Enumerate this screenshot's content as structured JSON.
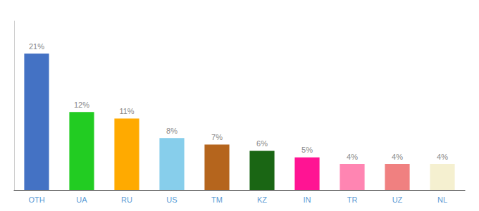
{
  "chart_data": {
    "type": "bar",
    "categories": [
      "OTH",
      "UA",
      "RU",
      "US",
      "TM",
      "KZ",
      "IN",
      "TR",
      "UZ",
      "NL"
    ],
    "values": [
      21,
      12,
      11,
      8,
      7,
      6,
      5,
      4,
      4,
      4
    ],
    "value_labels": [
      "21%",
      "12%",
      "11%",
      "8%",
      "7%",
      "6%",
      "5%",
      "4%",
      "4%",
      "4%"
    ],
    "colors": [
      "#4472c4",
      "#22cc22",
      "#ffaa00",
      "#87ceeb",
      "#b5651d",
      "#1a6614",
      "#ff1493",
      "#ff85b2",
      "#f08080",
      "#f5f0d0"
    ],
    "ylim": [
      0,
      26
    ],
    "data_labels": true,
    "tick_labels": "x",
    "grid": false
  }
}
